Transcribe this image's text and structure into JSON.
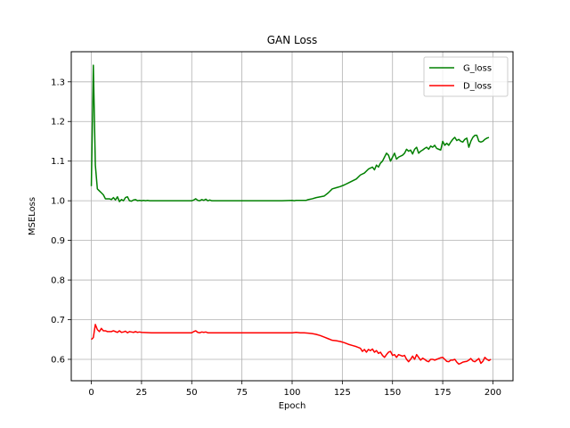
{
  "chart_data": {
    "type": "line",
    "title": "GAN Loss",
    "xlabel": "Epoch",
    "ylabel": "MSELoss",
    "xlim": [
      -10,
      210
    ],
    "ylim": [
      0.546,
      1.376
    ],
    "xticks": [
      0,
      25,
      50,
      75,
      100,
      125,
      150,
      175,
      200
    ],
    "yticks": [
      0.6,
      0.7,
      0.8,
      0.9,
      1.0,
      1.1,
      1.2,
      1.3
    ],
    "grid": true,
    "legend_position": "top-right",
    "series": [
      {
        "name": "G_loss",
        "color": "#008000",
        "points": [
          [
            0,
            1.037
          ],
          [
            1,
            1.342
          ],
          [
            2,
            1.09
          ],
          [
            3,
            1.03
          ],
          [
            4,
            1.025
          ],
          [
            5,
            1.02
          ],
          [
            6,
            1.015
          ],
          [
            7,
            1.005
          ],
          [
            8,
            1.005
          ],
          [
            9,
            1.005
          ],
          [
            10,
            1.003
          ],
          [
            11,
            1.008
          ],
          [
            12,
            1.002
          ],
          [
            13,
            1.01
          ],
          [
            14,
            0.998
          ],
          [
            15,
            1.003
          ],
          [
            16,
            1.0
          ],
          [
            17,
            1.008
          ],
          [
            18,
            1.01
          ],
          [
            19,
            1.0
          ],
          [
            20,
            0.999
          ],
          [
            21,
            1.002
          ],
          [
            22,
            1.003
          ],
          [
            23,
            1.0
          ],
          [
            24,
            1.001
          ],
          [
            25,
            1.0
          ],
          [
            26,
            1.001
          ],
          [
            27,
            1.0
          ],
          [
            28,
            1.001
          ],
          [
            29,
            1.0
          ],
          [
            30,
            1.0
          ],
          [
            35,
            1.0
          ],
          [
            40,
            1.0
          ],
          [
            45,
            1.0
          ],
          [
            50,
            1.0
          ],
          [
            51,
            1.002
          ],
          [
            52,
            1.005
          ],
          [
            53,
            1.001
          ],
          [
            54,
            1.0
          ],
          [
            55,
            1.003
          ],
          [
            56,
            1.001
          ],
          [
            57,
            1.004
          ],
          [
            58,
            1.0
          ],
          [
            59,
            1.002
          ],
          [
            60,
            1.0
          ],
          [
            65,
            1.0
          ],
          [
            70,
            1.0
          ],
          [
            75,
            1.0
          ],
          [
            80,
            1.0
          ],
          [
            85,
            1.0
          ],
          [
            90,
            1.0
          ],
          [
            95,
            1.0
          ],
          [
            100,
            1.001
          ],
          [
            101,
            1.0
          ],
          [
            102,
            1.001
          ],
          [
            105,
            1.001
          ],
          [
            107,
            1.001
          ],
          [
            108,
            1.003
          ],
          [
            110,
            1.005
          ],
          [
            112,
            1.008
          ],
          [
            114,
            1.01
          ],
          [
            116,
            1.012
          ],
          [
            118,
            1.02
          ],
          [
            120,
            1.03
          ],
          [
            122,
            1.033
          ],
          [
            124,
            1.036
          ],
          [
            126,
            1.04
          ],
          [
            128,
            1.045
          ],
          [
            130,
            1.05
          ],
          [
            132,
            1.055
          ],
          [
            134,
            1.065
          ],
          [
            136,
            1.07
          ],
          [
            138,
            1.08
          ],
          [
            140,
            1.085
          ],
          [
            141,
            1.078
          ],
          [
            142,
            1.09
          ],
          [
            143,
            1.085
          ],
          [
            144,
            1.095
          ],
          [
            145,
            1.1
          ],
          [
            146,
            1.11
          ],
          [
            147,
            1.12
          ],
          [
            148,
            1.115
          ],
          [
            149,
            1.1
          ],
          [
            150,
            1.11
          ],
          [
            151,
            1.12
          ],
          [
            152,
            1.105
          ],
          [
            153,
            1.11
          ],
          [
            155,
            1.115
          ],
          [
            156,
            1.12
          ],
          [
            157,
            1.13
          ],
          [
            158,
            1.125
          ],
          [
            159,
            1.128
          ],
          [
            160,
            1.118
          ],
          [
            161,
            1.13
          ],
          [
            162,
            1.135
          ],
          [
            163,
            1.12
          ],
          [
            164,
            1.125
          ],
          [
            165,
            1.128
          ],
          [
            166,
            1.132
          ],
          [
            167,
            1.135
          ],
          [
            168,
            1.13
          ],
          [
            169,
            1.138
          ],
          [
            170,
            1.135
          ],
          [
            171,
            1.14
          ],
          [
            172,
            1.132
          ],
          [
            173,
            1.13
          ],
          [
            174,
            1.128
          ],
          [
            175,
            1.15
          ],
          [
            176,
            1.14
          ],
          [
            177,
            1.145
          ],
          [
            178,
            1.14
          ],
          [
            179,
            1.148
          ],
          [
            180,
            1.155
          ],
          [
            181,
            1.16
          ],
          [
            182,
            1.152
          ],
          [
            183,
            1.155
          ],
          [
            184,
            1.15
          ],
          [
            185,
            1.148
          ],
          [
            186,
            1.155
          ],
          [
            187,
            1.158
          ],
          [
            188,
            1.135
          ],
          [
            189,
            1.15
          ],
          [
            190,
            1.16
          ],
          [
            191,
            1.165
          ],
          [
            192,
            1.165
          ],
          [
            193,
            1.15
          ],
          [
            194,
            1.148
          ],
          [
            195,
            1.15
          ],
          [
            196,
            1.155
          ],
          [
            197,
            1.158
          ],
          [
            198,
            1.16
          ]
        ]
      },
      {
        "name": "D_loss",
        "color": "#ff0000",
        "points": [
          [
            0,
            0.65
          ],
          [
            1,
            0.655
          ],
          [
            2,
            0.688
          ],
          [
            3,
            0.675
          ],
          [
            4,
            0.67
          ],
          [
            5,
            0.678
          ],
          [
            6,
            0.672
          ],
          [
            7,
            0.672
          ],
          [
            8,
            0.67
          ],
          [
            9,
            0.67
          ],
          [
            10,
            0.67
          ],
          [
            11,
            0.672
          ],
          [
            12,
            0.67
          ],
          [
            13,
            0.668
          ],
          [
            14,
            0.672
          ],
          [
            15,
            0.668
          ],
          [
            16,
            0.669
          ],
          [
            17,
            0.671
          ],
          [
            18,
            0.667
          ],
          [
            19,
            0.67
          ],
          [
            20,
            0.669
          ],
          [
            21,
            0.668
          ],
          [
            22,
            0.67
          ],
          [
            23,
            0.668
          ],
          [
            24,
            0.669
          ],
          [
            25,
            0.668
          ],
          [
            30,
            0.667
          ],
          [
            35,
            0.667
          ],
          [
            40,
            0.667
          ],
          [
            45,
            0.667
          ],
          [
            50,
            0.667
          ],
          [
            51,
            0.67
          ],
          [
            52,
            0.672
          ],
          [
            53,
            0.668
          ],
          [
            54,
            0.667
          ],
          [
            55,
            0.669
          ],
          [
            56,
            0.668
          ],
          [
            57,
            0.669
          ],
          [
            58,
            0.667
          ],
          [
            60,
            0.667
          ],
          [
            65,
            0.667
          ],
          [
            70,
            0.667
          ],
          [
            75,
            0.667
          ],
          [
            80,
            0.667
          ],
          [
            85,
            0.667
          ],
          [
            90,
            0.667
          ],
          [
            95,
            0.667
          ],
          [
            100,
            0.667
          ],
          [
            102,
            0.668
          ],
          [
            104,
            0.667
          ],
          [
            106,
            0.667
          ],
          [
            108,
            0.666
          ],
          [
            110,
            0.665
          ],
          [
            112,
            0.663
          ],
          [
            114,
            0.66
          ],
          [
            116,
            0.656
          ],
          [
            118,
            0.652
          ],
          [
            120,
            0.648
          ],
          [
            122,
            0.647
          ],
          [
            124,
            0.645
          ],
          [
            126,
            0.642
          ],
          [
            128,
            0.638
          ],
          [
            130,
            0.635
          ],
          [
            132,
            0.632
          ],
          [
            134,
            0.628
          ],
          [
            135,
            0.62
          ],
          [
            136,
            0.625
          ],
          [
            137,
            0.618
          ],
          [
            138,
            0.625
          ],
          [
            139,
            0.622
          ],
          [
            140,
            0.626
          ],
          [
            141,
            0.618
          ],
          [
            142,
            0.622
          ],
          [
            143,
            0.615
          ],
          [
            144,
            0.618
          ],
          [
            145,
            0.61
          ],
          [
            146,
            0.605
          ],
          [
            147,
            0.612
          ],
          [
            148,
            0.618
          ],
          [
            149,
            0.62
          ],
          [
            150,
            0.61
          ],
          [
            151,
            0.612
          ],
          [
            152,
            0.605
          ],
          [
            153,
            0.612
          ],
          [
            154,
            0.61
          ],
          [
            155,
            0.608
          ],
          [
            156,
            0.61
          ],
          [
            157,
            0.6
          ],
          [
            158,
            0.594
          ],
          [
            159,
            0.6
          ],
          [
            160,
            0.608
          ],
          [
            161,
            0.6
          ],
          [
            162,
            0.612
          ],
          [
            163,
            0.605
          ],
          [
            164,
            0.598
          ],
          [
            165,
            0.603
          ],
          [
            166,
            0.6
          ],
          [
            167,
            0.596
          ],
          [
            168,
            0.594
          ],
          [
            169,
            0.6
          ],
          [
            170,
            0.6
          ],
          [
            171,
            0.598
          ],
          [
            172,
            0.6
          ],
          [
            173,
            0.602
          ],
          [
            174,
            0.604
          ],
          [
            175,
            0.605
          ],
          [
            176,
            0.6
          ],
          [
            177,
            0.595
          ],
          [
            178,
            0.594
          ],
          [
            179,
            0.598
          ],
          [
            180,
            0.598
          ],
          [
            181,
            0.6
          ],
          [
            182,
            0.593
          ],
          [
            183,
            0.588
          ],
          [
            184,
            0.59
          ],
          [
            185,
            0.593
          ],
          [
            186,
            0.594
          ],
          [
            187,
            0.595
          ],
          [
            188,
            0.598
          ],
          [
            189,
            0.602
          ],
          [
            190,
            0.596
          ],
          [
            191,
            0.594
          ],
          [
            192,
            0.598
          ],
          [
            193,
            0.602
          ],
          [
            194,
            0.59
          ],
          [
            195,
            0.595
          ],
          [
            196,
            0.605
          ],
          [
            197,
            0.6
          ],
          [
            198,
            0.597
          ],
          [
            199,
            0.6
          ]
        ]
      }
    ]
  }
}
